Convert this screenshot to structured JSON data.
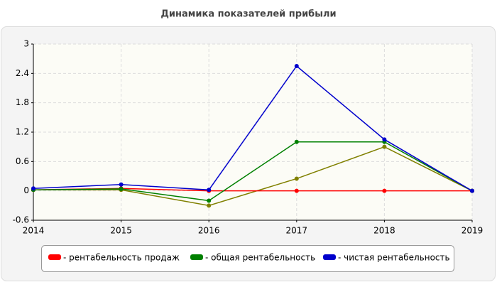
{
  "chart_data": {
    "type": "line",
    "title": "Динамика показателей прибыли",
    "x": [
      2014,
      2015,
      2016,
      2017,
      2018,
      2019
    ],
    "xlim": [
      2014,
      2019
    ],
    "xticks": [
      2014,
      2015,
      2016,
      2017,
      2018,
      2019
    ],
    "ylim": [
      -0.6,
      3
    ],
    "yticks": [
      -0.6,
      0,
      0.6,
      1.2,
      1.8,
      2.4,
      3
    ],
    "grid": true,
    "legend": "bottom",
    "series": [
      {
        "name": "- рентабельность продаж",
        "color": "#ff0000",
        "values": [
          0.02,
          0.05,
          0,
          0,
          0,
          0
        ]
      },
      {
        "name": "- общая рентабельность",
        "color": "#008000",
        "values": [
          0.02,
          0.04,
          -0.2,
          1.0,
          1.0,
          0
        ]
      },
      {
        "name": "- чистая рентабельность",
        "color": "#0000cc",
        "values": [
          0.05,
          0.13,
          0.02,
          2.55,
          1.05,
          0
        ]
      },
      {
        "color": "#808000",
        "values": [
          0.02,
          0.02,
          -0.3,
          0.25,
          0.9,
          0
        ]
      }
    ]
  }
}
